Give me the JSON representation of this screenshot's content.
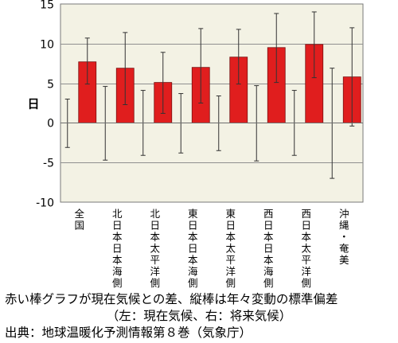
{
  "chart_data": {
    "type": "bar",
    "ylabel": "日",
    "ylim": [
      -10,
      15
    ],
    "yticks": [
      -10,
      -5,
      0,
      5,
      10,
      15
    ],
    "grid": true,
    "categories": [
      "全国",
      "北日本日本海側",
      "北日本太平洋側",
      "東日本日本海側",
      "東日本太平洋側",
      "西日本日本海側",
      "西日本太平洋側",
      "沖縄・奄美"
    ],
    "series": [
      {
        "values": [
          0,
          0,
          0,
          0,
          0,
          0,
          0,
          0
        ],
        "err_low": [
          -3.1,
          -4.7,
          -4.1,
          -3.8,
          -3.5,
          -4.8,
          -4.1,
          -7.0
        ],
        "err_high": [
          3.0,
          4.6,
          4.1,
          3.7,
          3.4,
          4.7,
          4.1,
          6.9
        ]
      },
      {
        "color": "#e01e1e",
        "values": [
          7.7,
          6.9,
          5.1,
          7.0,
          8.3,
          9.5,
          9.9,
          5.8
        ],
        "err_low": [
          4.9,
          2.3,
          1.2,
          2.5,
          4.9,
          5.1,
          5.7,
          -0.4
        ],
        "err_high": [
          10.7,
          11.4,
          8.9,
          11.9,
          11.8,
          13.8,
          14.0,
          12.0
        ]
      }
    ],
    "plot_bg": "#f3f2e4",
    "grid_color": "#8f8f8f"
  },
  "caption": {
    "line1": "赤い棒グラフが現在気候との差、縦棒は年々変動の標準偏差",
    "line2": "（左：現在気候、右：将来気候）",
    "line3": "出典：地球温暖化予測情報第８巻（気象庁）"
  }
}
